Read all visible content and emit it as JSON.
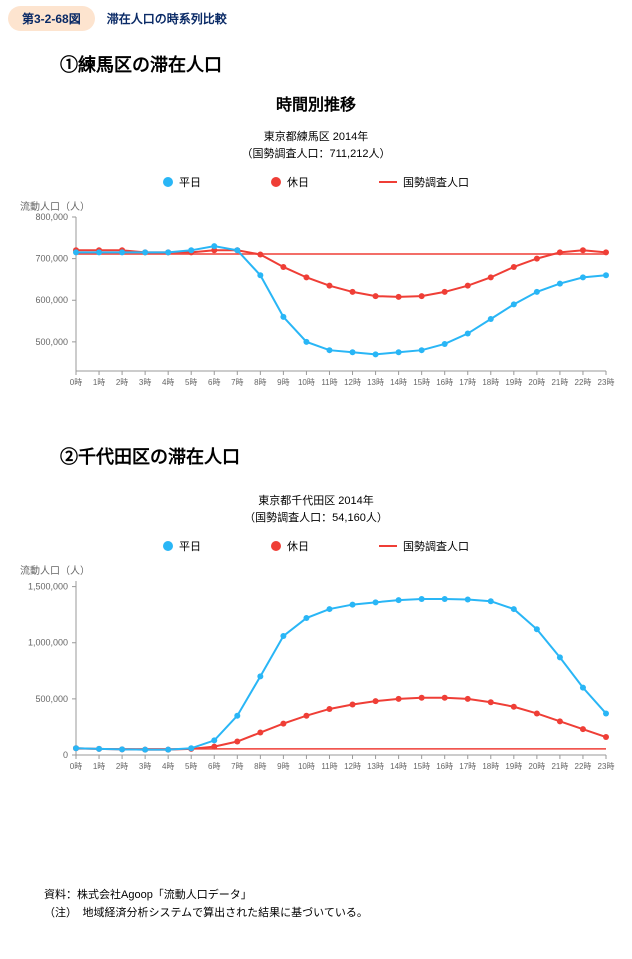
{
  "figure_badge": "第3-2-68図",
  "figure_caption": "滞在人口の時系列比較",
  "section1_title": "①練馬区の滞在人口",
  "section2_title": "②千代田区の滞在人口",
  "chart_main_title": "時間別推移",
  "legend": {
    "weekday": "平日",
    "holiday": "休日",
    "census": "国勢調査人口"
  },
  "colors": {
    "weekday": "#29b6f6",
    "holiday": "#ef3e36",
    "census": "#ef3e36",
    "axis": "#999999",
    "tick_text": "#666666",
    "grid": "#eeeeee"
  },
  "chart1": {
    "subtitle_line1": "東京都練馬区 2014年",
    "subtitle_line2": "（国勢調査人口：711,212人）",
    "ylabel": "流動人口（人）",
    "xticks": [
      "0時",
      "1時",
      "2時",
      "3時",
      "4時",
      "5時",
      "6時",
      "7時",
      "8時",
      "9時",
      "10時",
      "11時",
      "12時",
      "13時",
      "14時",
      "15時",
      "16時",
      "17時",
      "18時",
      "19時",
      "20時",
      "21時",
      "22時",
      "23時"
    ],
    "yticks": [
      500000,
      600000,
      700000,
      800000
    ],
    "ytick_labels": [
      "500,000",
      "600,000",
      "700,000",
      "800,000"
    ],
    "ylim": [
      430000,
      800000
    ],
    "census_value": 711212,
    "weekday": [
      715000,
      715000,
      715000,
      715000,
      715000,
      720000,
      730000,
      720000,
      660000,
      560000,
      500000,
      480000,
      475000,
      470000,
      475000,
      480000,
      495000,
      520000,
      555000,
      590000,
      620000,
      640000,
      655000,
      660000
    ],
    "holiday": [
      720000,
      720000,
      720000,
      715000,
      715000,
      715000,
      720000,
      720000,
      710000,
      680000,
      655000,
      635000,
      620000,
      610000,
      608000,
      610000,
      620000,
      635000,
      655000,
      680000,
      700000,
      715000,
      720000,
      715000
    ]
  },
  "chart2": {
    "subtitle_line1": "東京都千代田区 2014年",
    "subtitle_line2": "（国勢調査人口：54,160人）",
    "ylabel": "流動人口（人）",
    "xticks": [
      "0時",
      "1時",
      "2時",
      "3時",
      "4時",
      "5時",
      "6時",
      "7時",
      "8時",
      "9時",
      "10時",
      "11時",
      "12時",
      "13時",
      "14時",
      "15時",
      "16時",
      "17時",
      "18時",
      "19時",
      "20時",
      "21時",
      "22時",
      "23時"
    ],
    "yticks": [
      0,
      500000,
      1000000,
      1500000
    ],
    "ytick_labels": [
      "0",
      "500,000",
      "1,000,000",
      "1,500,000"
    ],
    "ylim": [
      0,
      1550000
    ],
    "census_value": 54160,
    "weekday": [
      60000,
      55000,
      50000,
      48000,
      48000,
      60000,
      130000,
      350000,
      700000,
      1060000,
      1220000,
      1300000,
      1340000,
      1360000,
      1380000,
      1390000,
      1390000,
      1385000,
      1370000,
      1300000,
      1120000,
      870000,
      600000,
      370000
    ],
    "holiday": [
      60000,
      55000,
      50000,
      48000,
      48000,
      55000,
      75000,
      120000,
      200000,
      280000,
      350000,
      410000,
      450000,
      480000,
      500000,
      510000,
      510000,
      500000,
      470000,
      430000,
      370000,
      300000,
      230000,
      160000
    ]
  },
  "footer_line1": "資料：株式会社Agoop「流動人口データ」",
  "footer_line2": "（注）　地域経済分析システムで算出された結果に基づいている。"
}
